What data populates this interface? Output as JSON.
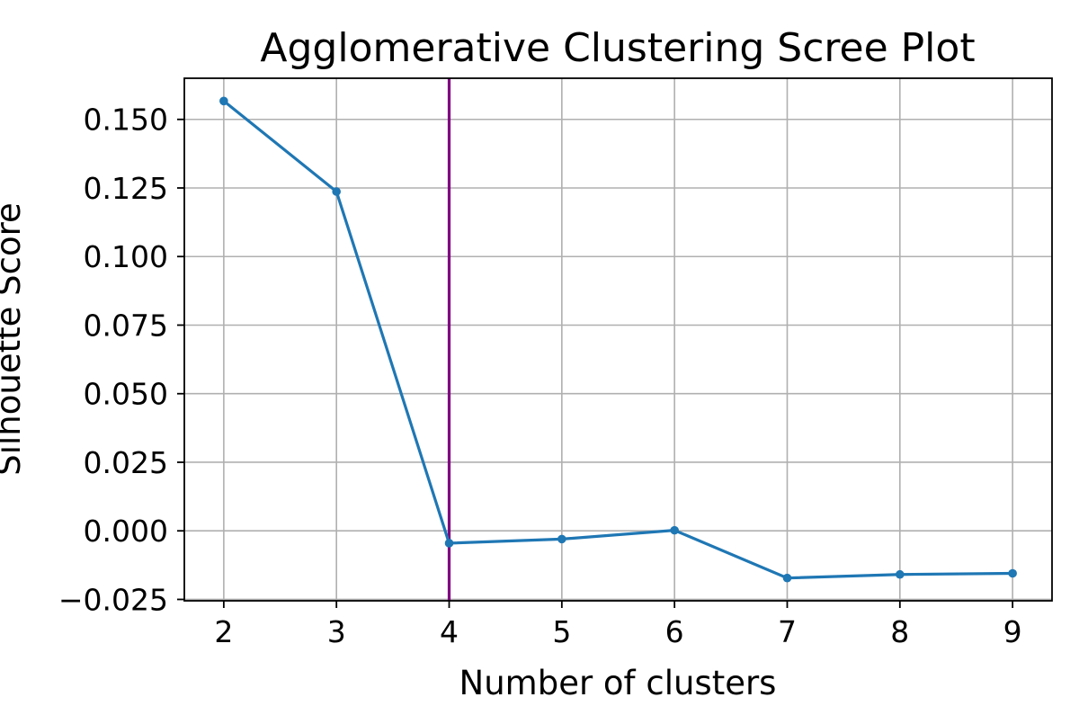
{
  "chart_data": {
    "type": "line",
    "title": "Agglomerative Clustering Scree Plot",
    "xlabel": "Number of clusters",
    "ylabel": "Silhouette Score",
    "x": [
      2,
      3,
      4,
      5,
      6,
      7,
      8,
      9
    ],
    "series": [
      {
        "values": [
          0.1567,
          0.1237,
          -0.0045,
          -0.003,
          0.0002,
          -0.0172,
          -0.0159,
          -0.0155
        ]
      }
    ],
    "xlim": [
      1.65,
      9.35
    ],
    "ylim": [
      -0.0255,
      0.165
    ],
    "xticks": [
      2,
      3,
      4,
      5,
      6,
      7,
      8,
      9
    ],
    "xtick_labels": [
      "2",
      "3",
      "4",
      "5",
      "6",
      "7",
      "8",
      "9"
    ],
    "yticks": [
      -0.025,
      0,
      0.025,
      0.05,
      0.075,
      0.1,
      0.125,
      0.15
    ],
    "ytick_labels": [
      "−0.025",
      "0.000",
      "0.025",
      "0.050",
      "0.075",
      "0.100",
      "0.125",
      "0.150"
    ],
    "grid": true,
    "vline": {
      "x": 4,
      "color": "#800080"
    },
    "colors": {
      "line": "#1f77b4",
      "grid": "#b0b0b0",
      "axes": "#000000"
    }
  }
}
